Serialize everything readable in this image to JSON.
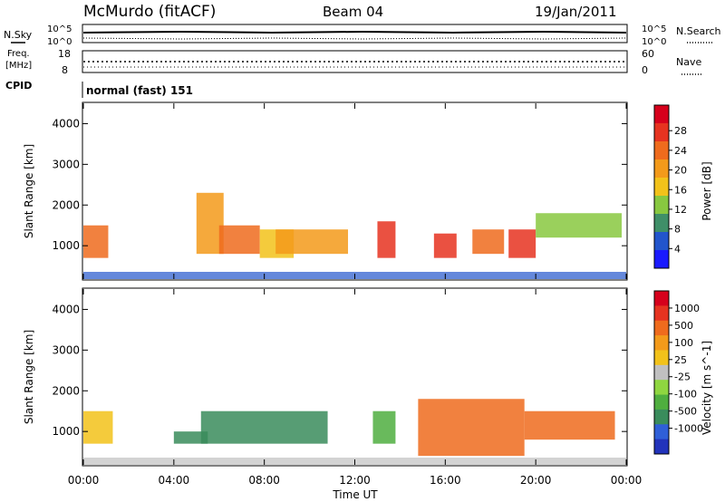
{
  "header": {
    "station": "McMurdo (fitACF)",
    "beam": "Beam 04",
    "date": "19/Jan/2011"
  },
  "top_strip": {
    "n_sky_label": "N.Sky",
    "n_search_label": "N.Search",
    "left_tick_top": "10^5",
    "left_tick_bottom": "10^0",
    "right_tick_top": "10^5",
    "right_tick_bottom": "10^0",
    "freq_label_1": "Freq.",
    "freq_label_2": "[MHz]",
    "freq_tick_top": "18",
    "freq_tick_bottom": "8",
    "nave_label": "Nave",
    "nave_tick_top": "60",
    "nave_tick_bottom": "0",
    "cpid_label": "CPID",
    "cpid_value": "normal (fast) 151"
  },
  "chart_data": [
    {
      "type": "heatmap",
      "title": "Power",
      "ylabel": "Slant Range [km]",
      "xlabel": "",
      "ylim": [
        180,
        4500
      ],
      "yticks": [
        "1000",
        "2000",
        "3000",
        "4000"
      ],
      "xticks": [
        "00:00",
        "04:00",
        "08:00",
        "12:00",
        "16:00",
        "20:00",
        "00:00"
      ],
      "colorbar_label": "Power [dB]",
      "colorbar_ticks": [
        "4",
        "8",
        "12",
        "16",
        "20",
        "24",
        "28"
      ],
      "colors": [
        "#1a1aff",
        "#2255cc",
        "#3f8f68",
        "#88c840",
        "#f2c21a",
        "#f39a1a",
        "#ef6b1d",
        "#e63320",
        "#d6001c"
      ],
      "echo_patches": [
        {
          "t0": 0.0,
          "t1": 1.1,
          "r0": 700,
          "r1": 1500,
          "level": 6
        },
        {
          "t0": 5.0,
          "t1": 6.2,
          "r0": 800,
          "r1": 2300,
          "level": 5
        },
        {
          "t0": 6.0,
          "t1": 7.8,
          "r0": 800,
          "r1": 1500,
          "level": 6
        },
        {
          "t0": 7.8,
          "t1": 9.3,
          "r0": 700,
          "r1": 1400,
          "level": 4
        },
        {
          "t0": 8.5,
          "t1": 11.7,
          "r0": 800,
          "r1": 1400,
          "level": 5
        },
        {
          "t0": 13.0,
          "t1": 13.8,
          "r0": 700,
          "r1": 1600,
          "level": 7
        },
        {
          "t0": 15.5,
          "t1": 16.5,
          "r0": 700,
          "r1": 1300,
          "level": 7
        },
        {
          "t0": 17.2,
          "t1": 18.6,
          "r0": 800,
          "r1": 1400,
          "level": 6
        },
        {
          "t0": 18.8,
          "t1": 20.0,
          "r0": 700,
          "r1": 1400,
          "level": 7
        },
        {
          "t0": 20.0,
          "t1": 23.8,
          "r0": 1200,
          "r1": 1800,
          "level": 3
        }
      ]
    },
    {
      "type": "heatmap",
      "title": "Velocity",
      "ylabel": "Slant Range [km]",
      "xlabel": "Time UT",
      "ylim": [
        180,
        4500
      ],
      "yticks": [
        "1000",
        "2000",
        "3000",
        "4000"
      ],
      "xticks": [
        "00:00",
        "04:00",
        "08:00",
        "12:00",
        "16:00",
        "20:00",
        "00:00"
      ],
      "colorbar_label": "Velocity [m s^-1]",
      "colorbar_ticks": [
        "1000",
        "500",
        "100",
        "25",
        "-25",
        "-100",
        "-500",
        "-1000"
      ],
      "colors": [
        "#2233bb",
        "#2f5fd8",
        "#3a8c5c",
        "#4fae3f",
        "#8fd640",
        "#c0c0c0",
        "#f2c21a",
        "#f39a1a",
        "#ef6b1d",
        "#e63320",
        "#d6001c"
      ],
      "echo_patches": [
        {
          "t0": 0.0,
          "t1": 1.3,
          "r0": 700,
          "r1": 1500,
          "level": 6
        },
        {
          "t0": 4.0,
          "t1": 5.5,
          "r0": 700,
          "r1": 1000,
          "level": 2
        },
        {
          "t0": 5.2,
          "t1": 10.8,
          "r0": 700,
          "r1": 1500,
          "level": 2
        },
        {
          "t0": 12.8,
          "t1": 13.8,
          "r0": 700,
          "r1": 1500,
          "level": 3
        },
        {
          "t0": 14.8,
          "t1": 19.5,
          "r0": 400,
          "r1": 1800,
          "level": 8
        },
        {
          "t0": 19.5,
          "t1": 23.5,
          "r0": 800,
          "r1": 1500,
          "level": 8
        }
      ]
    }
  ]
}
